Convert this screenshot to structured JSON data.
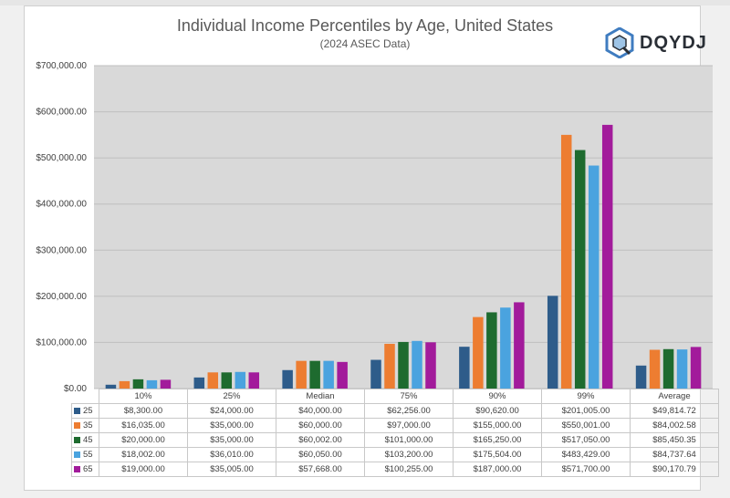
{
  "header": {
    "title": "Individual Income Percentiles by Age, United States",
    "subtitle": "(2024 ASEC Data)",
    "logo_text": "DQYDJ"
  },
  "chart_data": {
    "type": "bar",
    "title": "Individual Income Percentiles by Age, United States",
    "subtitle": "(2024 ASEC Data)",
    "categories": [
      "10%",
      "25%",
      "Median",
      "75%",
      "90%",
      "99%",
      "Average"
    ],
    "ylim": [
      0,
      700000
    ],
    "ytick_labels": [
      "$0.00",
      "$100,000.00",
      "$200,000.00",
      "$300,000.00",
      "$400,000.00",
      "$500,000.00",
      "$600,000.00",
      "$700,000.00"
    ],
    "grid": true,
    "legend": "data-table",
    "series": [
      {
        "name": "25",
        "color": "#2e5c8a",
        "values": [
          8300,
          24000,
          40000,
          62256,
          90620,
          201005,
          49814.72
        ],
        "labels": [
          "$8,300.00",
          "$24,000.00",
          "$40,000.00",
          "$62,256.00",
          "$90,620.00",
          "$201,005.00",
          "$49,814.72"
        ]
      },
      {
        "name": "35",
        "color": "#ed7d31",
        "values": [
          16035,
          35000,
          60000,
          97000,
          155000,
          550001,
          84002.58
        ],
        "labels": [
          "$16,035.00",
          "$35,000.00",
          "$60,000.00",
          "$97,000.00",
          "$155,000.00",
          "$550,001.00",
          "$84,002.58"
        ]
      },
      {
        "name": "45",
        "color": "#1e6b2f",
        "values": [
          20000,
          35000,
          60002,
          101000,
          165250,
          517050,
          85450.35
        ],
        "labels": [
          "$20,000.00",
          "$35,000.00",
          "$60,002.00",
          "$101,000.00",
          "$165,250.00",
          "$517,050.00",
          "$85,450.35"
        ]
      },
      {
        "name": "55",
        "color": "#4aa3df",
        "values": [
          18002,
          36010,
          60050,
          103200,
          175504,
          483429,
          84737.64
        ],
        "labels": [
          "$18,002.00",
          "$36,010.00",
          "$60,050.00",
          "$103,200.00",
          "$175,504.00",
          "$483,429.00",
          "$84,737.64"
        ]
      },
      {
        "name": "65",
        "color": "#a21b9b",
        "values": [
          19000,
          35005,
          57668,
          100255,
          187000,
          571700,
          90170.79
        ],
        "labels": [
          "$19,000.00",
          "$35,005.00",
          "$57,668.00",
          "$100,255.00",
          "$187,000.00",
          "$571,700.00",
          "$90,170.79"
        ]
      }
    ]
  }
}
